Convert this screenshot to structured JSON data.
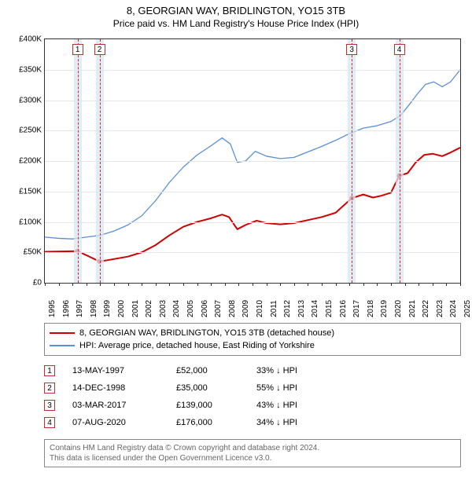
{
  "titles": {
    "line1": "8, GEORGIAN WAY, BRIDLINGTON, YO15 3TB",
    "line2": "Price paid vs. HM Land Registry's House Price Index (HPI)"
  },
  "chart": {
    "type": "line",
    "background_color": "#ffffff",
    "grid_color": "#e6e6e6",
    "axis_color": "#333333",
    "x_years": [
      1995,
      1996,
      1997,
      1998,
      1999,
      2000,
      2001,
      2002,
      2003,
      2004,
      2005,
      2006,
      2007,
      2008,
      2009,
      2010,
      2011,
      2012,
      2013,
      2014,
      2015,
      2016,
      2017,
      2018,
      2019,
      2020,
      2021,
      2022,
      2023,
      2024,
      2025
    ],
    "ylim": [
      0,
      400000
    ],
    "ytick_step": 50000,
    "ytick_labels": [
      "£0",
      "£50K",
      "£100K",
      "£150K",
      "£200K",
      "£250K",
      "£300K",
      "£350K",
      "£400K"
    ],
    "label_fontsize": 10,
    "marker_band_color": "#d9e4f2",
    "marker_line_color": "#c03030",
    "markers": [
      {
        "n": 1,
        "x": 1997.37
      },
      {
        "n": 2,
        "x": 1998.95
      },
      {
        "n": 3,
        "x": 2017.17
      },
      {
        "n": 4,
        "x": 2020.6
      }
    ],
    "series": [
      {
        "name": "price_paid",
        "color": "#cc0000",
        "width": 2,
        "points": [
          [
            1995.0,
            51000
          ],
          [
            1997.37,
            52000
          ],
          [
            1998.95,
            35000
          ],
          [
            1999.5,
            37000
          ],
          [
            2001.0,
            43000
          ],
          [
            2002.0,
            50000
          ],
          [
            2003.0,
            62000
          ],
          [
            2004.0,
            78000
          ],
          [
            2005.0,
            92000
          ],
          [
            2006.0,
            100000
          ],
          [
            2007.0,
            106000
          ],
          [
            2007.8,
            112000
          ],
          [
            2008.3,
            108000
          ],
          [
            2008.9,
            88000
          ],
          [
            2009.5,
            95000
          ],
          [
            2010.3,
            102000
          ],
          [
            2011.0,
            98000
          ],
          [
            2012.0,
            96000
          ],
          [
            2013.0,
            98000
          ],
          [
            2014.0,
            103000
          ],
          [
            2015.0,
            108000
          ],
          [
            2016.0,
            115000
          ],
          [
            2017.17,
            139000
          ],
          [
            2018.0,
            145000
          ],
          [
            2018.7,
            140000
          ],
          [
            2019.3,
            143000
          ],
          [
            2020.0,
            148000
          ],
          [
            2020.6,
            176000
          ],
          [
            2021.2,
            180000
          ],
          [
            2021.8,
            198000
          ],
          [
            2022.4,
            210000
          ],
          [
            2023.0,
            212000
          ],
          [
            2023.7,
            208000
          ],
          [
            2024.3,
            214000
          ],
          [
            2025.0,
            222000
          ]
        ],
        "sale_points": [
          [
            1997.37,
            52000
          ],
          [
            1998.95,
            35000
          ],
          [
            2017.17,
            139000
          ],
          [
            2020.6,
            176000
          ]
        ]
      },
      {
        "name": "hpi",
        "color": "#5b8fd6",
        "width": 1.3,
        "points": [
          [
            1995.0,
            75000
          ],
          [
            1996.0,
            73000
          ],
          [
            1997.0,
            72000
          ],
          [
            1998.0,
            75000
          ],
          [
            1999.0,
            78000
          ],
          [
            2000.0,
            85000
          ],
          [
            2001.0,
            95000
          ],
          [
            2002.0,
            110000
          ],
          [
            2003.0,
            135000
          ],
          [
            2004.0,
            165000
          ],
          [
            2005.0,
            190000
          ],
          [
            2006.0,
            210000
          ],
          [
            2007.0,
            225000
          ],
          [
            2007.8,
            238000
          ],
          [
            2008.4,
            228000
          ],
          [
            2008.9,
            198000
          ],
          [
            2009.5,
            200000
          ],
          [
            2010.2,
            216000
          ],
          [
            2011.0,
            208000
          ],
          [
            2012.0,
            204000
          ],
          [
            2013.0,
            206000
          ],
          [
            2014.0,
            215000
          ],
          [
            2015.0,
            224000
          ],
          [
            2016.0,
            234000
          ],
          [
            2017.0,
            245000
          ],
          [
            2018.0,
            254000
          ],
          [
            2019.0,
            258000
          ],
          [
            2020.0,
            265000
          ],
          [
            2020.7,
            275000
          ],
          [
            2021.3,
            292000
          ],
          [
            2021.9,
            310000
          ],
          [
            2022.5,
            326000
          ],
          [
            2023.1,
            330000
          ],
          [
            2023.7,
            322000
          ],
          [
            2024.3,
            330000
          ],
          [
            2025.0,
            350000
          ]
        ]
      }
    ]
  },
  "legend": {
    "items": [
      {
        "color": "#cc0000",
        "width": 2,
        "label": "8, GEORGIAN WAY, BRIDLINGTON, YO15 3TB (detached house)"
      },
      {
        "color": "#5b8fd6",
        "width": 1.3,
        "label": "HPI: Average price, detached house, East Riding of Yorkshire"
      }
    ]
  },
  "sales": [
    {
      "n": 1,
      "date": "13-MAY-1997",
      "price": "£52,000",
      "delta": "33% ↓ HPI"
    },
    {
      "n": 2,
      "date": "14-DEC-1998",
      "price": "£35,000",
      "delta": "55% ↓ HPI"
    },
    {
      "n": 3,
      "date": "03-MAR-2017",
      "price": "£139,000",
      "delta": "43% ↓ HPI"
    },
    {
      "n": 4,
      "date": "07-AUG-2020",
      "price": "£176,000",
      "delta": "34% ↓ HPI"
    }
  ],
  "attribution": {
    "line1": "Contains HM Land Registry data © Crown copyright and database right 2024.",
    "line2": "This data is licensed under the Open Government Licence v3.0."
  }
}
